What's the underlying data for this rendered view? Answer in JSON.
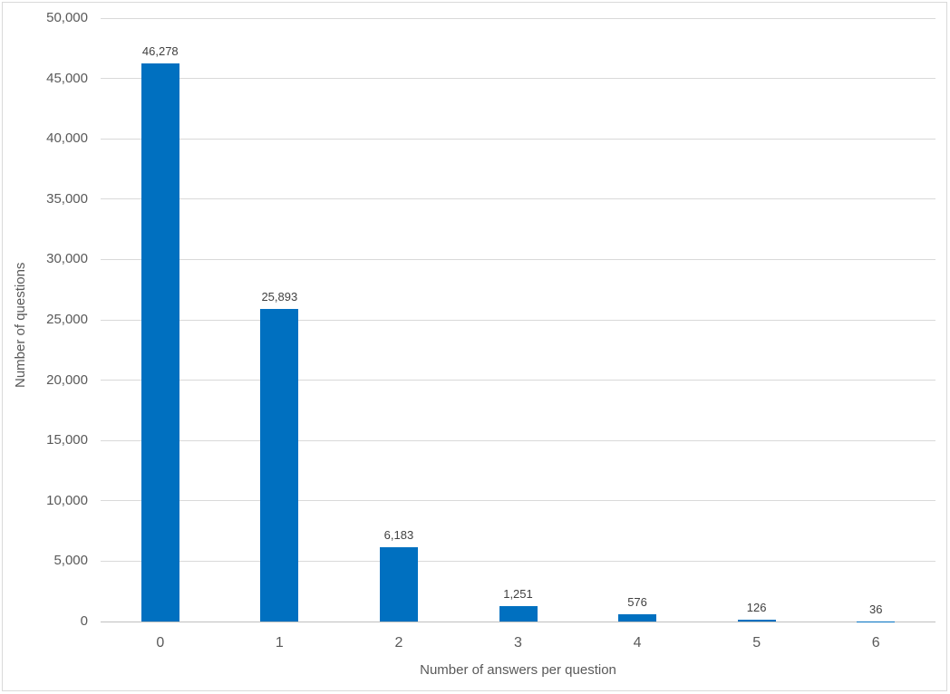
{
  "chart_data": {
    "type": "bar",
    "title": "",
    "xlabel": "Number of answers per question",
    "ylabel": "Number of questions",
    "categories": [
      "0",
      "1",
      "2",
      "3",
      "4",
      "5",
      "6"
    ],
    "values": [
      46278,
      25893,
      6183,
      1251,
      576,
      126,
      36
    ],
    "value_labels": [
      "46,278",
      "25,893",
      "6,183",
      "1,251",
      "576",
      "126",
      "36"
    ],
    "ylim": [
      0,
      50000
    ],
    "ytick_step": 5000,
    "yticks": [
      0,
      5000,
      10000,
      15000,
      20000,
      25000,
      30000,
      35000,
      40000,
      45000,
      50000
    ],
    "ytick_labels": [
      "0",
      "5,000",
      "10,000",
      "15,000",
      "20,000",
      "25,000",
      "30,000",
      "35,000",
      "40,000",
      "45,000",
      "50,000"
    ],
    "grid": "horizontal",
    "legend": "none",
    "bar_color": "#0070c0",
    "gridline_color": "#d9d9d9",
    "axis_line_color": "#bfbfbf",
    "text_color": "#595959",
    "chart_border_color": "#d9d9d9"
  }
}
